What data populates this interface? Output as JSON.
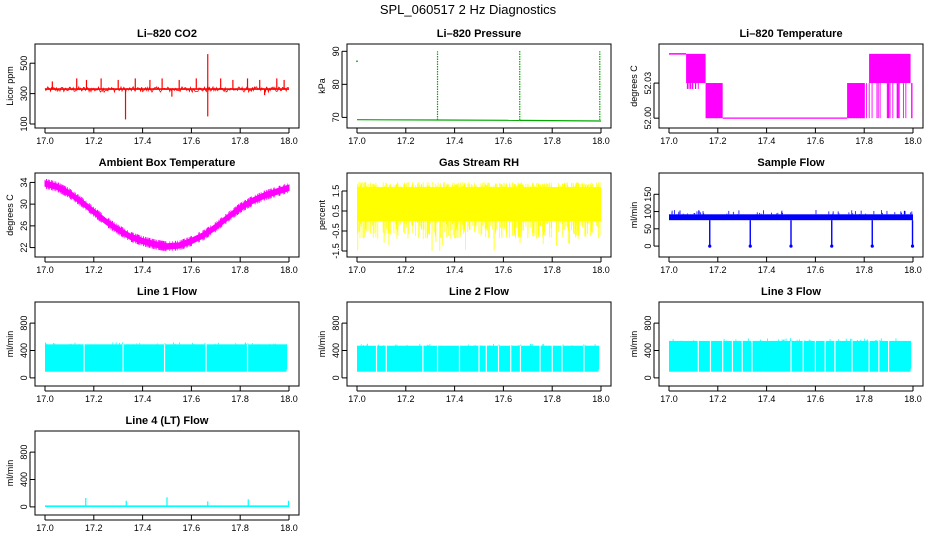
{
  "page": {
    "title": "SPL_060517  2 Hz Diagnostics"
  },
  "chart_data": [
    {
      "type": "line",
      "title": "Li–820 CO2",
      "ylabel": "Licor ppm",
      "color": "#ff0000",
      "xlim": [
        17.0,
        18.0
      ],
      "ylim": [
        100,
        600
      ],
      "xticks": [
        "17.0",
        "17.2",
        "17.4",
        "17.6",
        "17.8",
        "18.0"
      ],
      "yticks": [
        100,
        300,
        500
      ],
      "series": [
        {
          "baseline": 330,
          "noise_range": [
            310,
            345
          ],
          "spikes_up": [
            [
              17.03,
              380
            ],
            [
              17.13,
              400
            ],
            [
              17.17,
              390
            ],
            [
              17.23,
              400
            ],
            [
              17.3,
              390
            ],
            [
              17.37,
              400
            ],
            [
              17.43,
              390
            ],
            [
              17.48,
              400
            ],
            [
              17.55,
              390
            ],
            [
              17.62,
              400
            ],
            [
              17.667,
              560
            ],
            [
              17.72,
              400
            ],
            [
              17.77,
              390
            ],
            [
              17.83,
              400
            ],
            [
              17.88,
              390
            ],
            [
              17.95,
              400
            ],
            [
              17.98,
              390
            ]
          ],
          "spikes_down": [
            [
              17.33,
              130
            ],
            [
              17.667,
              150
            ],
            [
              17.52,
              280
            ],
            [
              17.9,
              290
            ]
          ]
        }
      ]
    },
    {
      "type": "line",
      "title": "Li–820 Pressure",
      "ylabel": "kPa",
      "color": "#00aa00",
      "xlim": [
        17.0,
        18.0
      ],
      "ylim": [
        68,
        91
      ],
      "xticks": [
        "17.0",
        "17.2",
        "17.4",
        "17.6",
        "17.8",
        "18.0"
      ],
      "yticks": [
        70,
        80,
        90
      ],
      "series": [
        {
          "segments": [
            [
              17.0,
              69.3
            ],
            [
              17.33,
              69.2
            ],
            [
              17.667,
              69.1
            ],
            [
              18.0,
              68.9
            ]
          ],
          "spikes_up": [
            [
              17.33,
              90.0
            ],
            [
              17.667,
              90.2
            ],
            [
              17.995,
              90.0
            ]
          ],
          "outliers": [
            [
              17.0,
              87
            ]
          ]
        }
      ]
    },
    {
      "type": "line",
      "title": "Li–820 Temperature",
      "ylabel": "degrees C",
      "color": "#ff00ff",
      "xlim": [
        17.0,
        18.0
      ],
      "ylim": [
        51.995,
        52.06
      ],
      "xticks": [
        "17.0",
        "17.2",
        "17.4",
        "17.6",
        "17.8",
        "18.0"
      ],
      "yticks": [
        "52.00",
        "52.03"
      ],
      "series": [
        {
          "high_value": 52.055,
          "mid_value": 52.03,
          "low_value": 52.0,
          "upper_band_x": [
            17.0,
            17.07
          ],
          "toggle_high_mid_x": [
            17.07,
            17.15
          ],
          "toggle_mid_low_x": [
            17.15,
            17.22
          ],
          "low_x": [
            17.22,
            17.73
          ],
          "toggle_low_mid_x": [
            17.73,
            17.8
          ],
          "toggle_mid_high_x": [
            17.8,
            18.0
          ]
        }
      ]
    },
    {
      "type": "line",
      "title": "Ambient Box Temperature",
      "ylabel": "degrees C",
      "color": "#ff00ff",
      "xlim": [
        17.0,
        18.0
      ],
      "ylim": [
        21,
        35
      ],
      "xticks": [
        "17.0",
        "17.2",
        "17.4",
        "17.6",
        "17.8",
        "18.0"
      ],
      "yticks": [
        22,
        26,
        30,
        34
      ],
      "series": [
        {
          "x": [
            17.0,
            17.05,
            17.1,
            17.15,
            17.2,
            17.25,
            17.3,
            17.35,
            17.4,
            17.45,
            17.5,
            17.55,
            17.6,
            17.65,
            17.7,
            17.75,
            17.8,
            17.85,
            17.9,
            17.95,
            18.0
          ],
          "values": [
            33.8,
            33.2,
            32.0,
            30.4,
            28.6,
            26.8,
            25.3,
            24.0,
            23.2,
            22.6,
            22.2,
            22.4,
            23.2,
            24.3,
            25.8,
            27.6,
            29.3,
            30.6,
            31.6,
            32.3,
            33.0
          ],
          "band_width": 1.0
        }
      ]
    },
    {
      "type": "line",
      "title": "Gas Stream RH",
      "ylabel": "percent",
      "color": "#ffff00",
      "xlim": [
        17.0,
        18.0
      ],
      "ylim": [
        -1.6,
        2.2
      ],
      "xticks": [
        "17.0",
        "17.2",
        "17.4",
        "17.6",
        "17.8",
        "18.0"
      ],
      "yticks": [
        -1.5,
        -0.5,
        0.5,
        1.5
      ],
      "series": [
        {
          "band": [
            0.0,
            1.7
          ],
          "dips_to": [
            -1.0,
            -1.5
          ]
        }
      ]
    },
    {
      "type": "line",
      "title": "Sample Flow",
      "ylabel": "ml/min",
      "color": "#0000ff",
      "xlim": [
        17.0,
        18.0
      ],
      "ylim": [
        -20,
        200
      ],
      "xticks": [
        "17.0",
        "17.2",
        "17.4",
        "17.6",
        "17.8",
        "18.0"
      ],
      "yticks": [
        0,
        50,
        100,
        150
      ],
      "series": [
        {
          "band": [
            75,
            92
          ],
          "spikes_up_to": 105,
          "drops_x": [
            17.167,
            17.333,
            17.5,
            17.667,
            17.833,
            17.998
          ],
          "drop_to": 0
        }
      ]
    },
    {
      "type": "area",
      "title": "Line 1 Flow",
      "ylabel": "ml/min",
      "color": "#00ffff",
      "xlim": [
        17.0,
        18.0
      ],
      "ylim": [
        -60,
        1050
      ],
      "xticks": [
        "17.0",
        "17.2",
        "17.4",
        "17.6",
        "17.8",
        "18.0"
      ],
      "yticks": [
        0,
        400,
        800
      ],
      "series": [
        {
          "band": [
            90,
            490
          ],
          "top_max": 520,
          "gaps_x": [
            17.16,
            17.32,
            17.49,
            17.66,
            17.83
          ],
          "end_x": 17.99
        }
      ]
    },
    {
      "type": "area",
      "title": "Line 2 Flow",
      "ylabel": "ml/min",
      "color": "#00ffff",
      "xlim": [
        17.0,
        18.0
      ],
      "ylim": [
        -60,
        1050
      ],
      "xticks": [
        "17.0",
        "17.2",
        "17.4",
        "17.6",
        "17.8",
        "18.0"
      ],
      "yticks": [
        0,
        400,
        800
      ],
      "series": [
        {
          "band": [
            90,
            470
          ],
          "top_max": 500,
          "gaps_x": [
            17.08,
            17.12,
            17.27,
            17.33,
            17.42,
            17.5,
            17.53,
            17.58,
            17.63,
            17.67,
            17.75,
            17.8,
            17.84,
            17.93
          ],
          "end_x": 17.99
        }
      ]
    },
    {
      "type": "area",
      "title": "Line 3 Flow",
      "ylabel": "ml/min",
      "color": "#00ffff",
      "xlim": [
        17.0,
        18.0
      ],
      "ylim": [
        -60,
        1050
      ],
      "xticks": [
        "17.0",
        "17.2",
        "17.4",
        "17.6",
        "17.8",
        "18.0"
      ],
      "yticks": [
        0,
        400,
        800
      ],
      "series": [
        {
          "band": [
            90,
            540
          ],
          "top_max": 580,
          "gaps_x": [
            17.12,
            17.17,
            17.22,
            17.26,
            17.3,
            17.34,
            17.5,
            17.55,
            17.6,
            17.64,
            17.68,
            17.75,
            17.82,
            17.86,
            17.9
          ],
          "end_x": 17.99
        }
      ]
    },
    {
      "type": "line",
      "title": "Line 4 (LT) Flow",
      "ylabel": "ml/min",
      "color": "#00ffff",
      "xlim": [
        17.0,
        18.0
      ],
      "ylim": [
        -60,
        1050
      ],
      "xticks": [
        "17.0",
        "17.2",
        "17.4",
        "17.6",
        "17.8",
        "18.0"
      ],
      "yticks": [
        0,
        400,
        800
      ],
      "series": [
        {
          "baseline": 10,
          "spikes": [
            [
              17.167,
              130
            ],
            [
              17.333,
              90
            ],
            [
              17.5,
              140
            ],
            [
              17.667,
              80
            ],
            [
              17.833,
              110
            ],
            [
              17.998,
              90
            ]
          ]
        }
      ]
    }
  ]
}
